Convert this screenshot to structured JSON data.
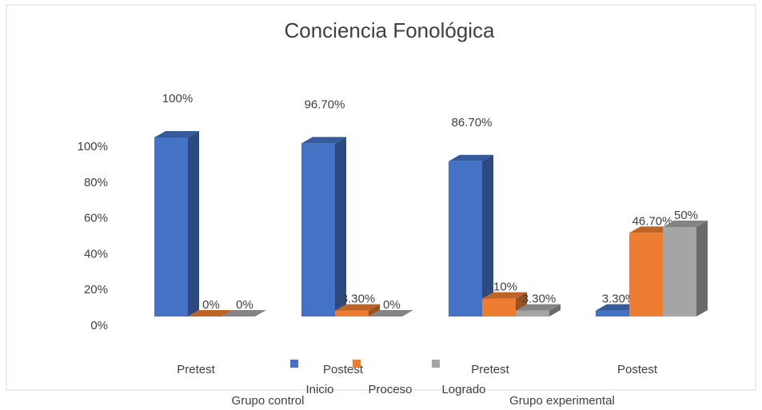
{
  "chart_data": {
    "type": "bar3d",
    "title": "Conciencia Fonológica",
    "categories": [
      "Pretest",
      "Postest",
      "Pretest",
      "Postest"
    ],
    "groups": [
      "Grupo control",
      "Grupo experimental"
    ],
    "series": [
      {
        "name": "Inicio",
        "color": "#4472c4",
        "values": [
          100,
          96.7,
          86.7,
          3.3
        ],
        "value_labels": [
          "100%",
          "96.70%",
          "86.70%",
          "3.30%"
        ]
      },
      {
        "name": "Proceso",
        "color": "#ed7d31",
        "values": [
          0,
          3.3,
          10,
          46.7
        ],
        "value_labels": [
          "0%",
          "3.30%",
          "10%",
          "46.70%"
        ]
      },
      {
        "name": "Logrado",
        "color": "#a5a5a5",
        "values": [
          0,
          0,
          3.3,
          50
        ],
        "value_labels": [
          "0%",
          "0%",
          "3.30%",
          "50%"
        ]
      }
    ],
    "ylim": [
      0,
      100
    ],
    "yticks": [
      {
        "value": 0,
        "label": "0%"
      },
      {
        "value": 20,
        "label": "20%"
      },
      {
        "value": 40,
        "label": "40%"
      },
      {
        "value": 60,
        "label": "60%"
      },
      {
        "value": 80,
        "label": "80%"
      },
      {
        "value": 100,
        "label": "100%"
      }
    ],
    "grid": false
  }
}
